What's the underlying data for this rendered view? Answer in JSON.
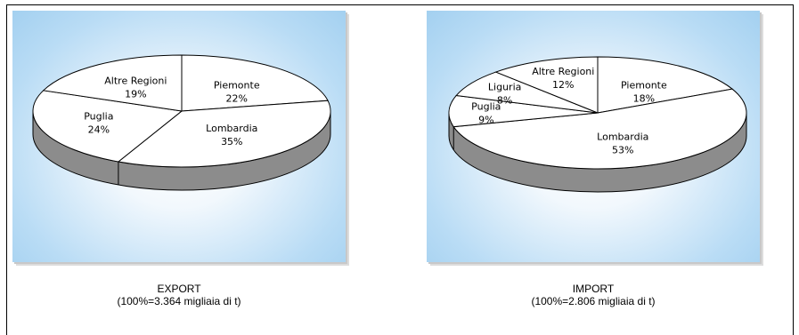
{
  "chart_data": [
    {
      "type": "pie",
      "title": "EXPORT",
      "subtitle": "(100%=3.364 migliaia di t)",
      "slices": [
        {
          "label": "Piemonte",
          "value": 22,
          "value_label": "22%"
        },
        {
          "label": "Lombardia",
          "value": 35,
          "value_label": "35%"
        },
        {
          "label": "Puglia",
          "value": 24,
          "value_label": "24%"
        },
        {
          "label": "Altre Regioni",
          "value": 19,
          "value_label": "19%"
        }
      ]
    },
    {
      "type": "pie",
      "title": "IMPORT",
      "subtitle": "(100%=2.806 migliaia di t)",
      "slices": [
        {
          "label": "Piemonte",
          "value": 18,
          "value_label": "18%"
        },
        {
          "label": "Lombardia",
          "value": 53,
          "value_label": "53%"
        },
        {
          "label": "Puglia",
          "value": 9,
          "value_label": "9%"
        },
        {
          "label": "Liguria",
          "value": 8,
          "value_label": "8%"
        },
        {
          "label": "Altre Regioni",
          "value": 12,
          "value_label": "12%"
        }
      ]
    }
  ],
  "colors": {
    "slice_fill": "#ffffff",
    "slice_side": "#8c8c8c",
    "outline": "#000000",
    "background_edge": "#a3d0f0"
  }
}
